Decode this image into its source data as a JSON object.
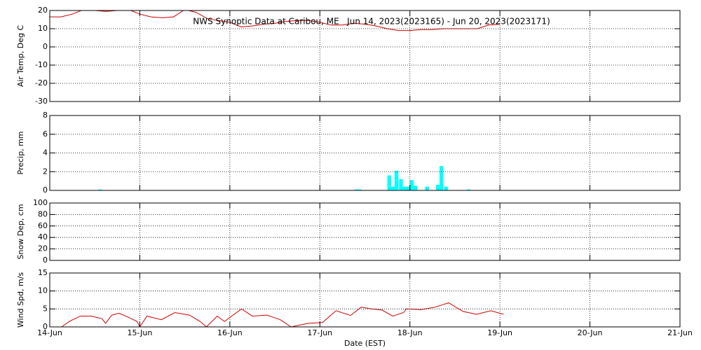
{
  "chart_data": [
    {
      "type": "line",
      "title": "NWS Synoptic Data at Caribou, ME   Jun 14, 2023(2023165) - Jun 20, 2023(2023171)",
      "y_label": "Air Temp, Deg C",
      "color": "#cc0000",
      "grid": true,
      "xlim": [
        0,
        7
      ],
      "xticks": [
        0,
        1,
        2,
        3,
        4,
        5,
        6,
        7
      ],
      "ylim": [
        -30,
        20
      ],
      "yticks": [
        -30,
        -20,
        -10,
        0,
        10,
        20
      ],
      "x": [
        0,
        0.125,
        0.25,
        0.375,
        0.5,
        0.625,
        0.75,
        0.875,
        1.0,
        1.125,
        1.25,
        1.375,
        1.5,
        1.625,
        1.75,
        1.875,
        2.0,
        2.125,
        2.25,
        2.375,
        2.5,
        2.625,
        2.75,
        2.875,
        3.0,
        3.125,
        3.25,
        3.375,
        3.5,
        3.625,
        3.75,
        3.875,
        4.0,
        4.125,
        4.25,
        4.375,
        4.5,
        4.625,
        4.75,
        4.875,
        5.0
      ],
      "values": [
        16.5,
        16.5,
        18,
        20.5,
        20,
        19.5,
        20,
        20.5,
        18,
        16.5,
        16,
        16.5,
        20.5,
        19,
        15.5,
        14.5,
        13.5,
        11,
        11.5,
        12.5,
        13,
        14,
        14.5,
        14.5,
        13.5,
        12,
        12,
        13,
        12.5,
        11.5,
        10,
        9,
        9,
        9.5,
        9.5,
        10,
        10,
        10,
        10,
        12,
        12.5
      ]
    },
    {
      "type": "bar",
      "y_label": "Precip, mm",
      "color": "#00ffff",
      "grid": true,
      "xlim": [
        0,
        7
      ],
      "xticks": [
        0,
        1,
        2,
        3,
        4,
        5,
        6,
        7
      ],
      "ylim": [
        0,
        8
      ],
      "yticks": [
        0,
        2,
        4,
        6,
        8
      ],
      "x": [
        0.54,
        3.38,
        3.42,
        3.75,
        3.79,
        3.83,
        3.88,
        3.92,
        3.96,
        4.0,
        4.04,
        4.17,
        4.29,
        4.33,
        4.38,
        4.63
      ],
      "values": [
        0.1,
        0.1,
        0.1,
        1.6,
        0.4,
        2.1,
        1.2,
        0.4,
        0.4,
        1.1,
        0.5,
        0.4,
        0.6,
        2.6,
        0.4,
        0.1
      ]
    },
    {
      "type": "line",
      "y_label": "Snow Dep, cm",
      "grid": true,
      "xlim": [
        0,
        7
      ],
      "xticks": [
        0,
        1,
        2,
        3,
        4,
        5,
        6,
        7
      ],
      "ylim": [
        0,
        100
      ],
      "yticks": [
        0,
        20,
        40,
        60,
        80,
        100
      ]
    },
    {
      "type": "line",
      "y_label": "Wind Spd, m/s",
      "x_label": "Date (EST)",
      "color": "#cc0000",
      "grid": true,
      "xlim": [
        0,
        7
      ],
      "xticks": [
        {
          "value": 0,
          "label": "14-Jun"
        },
        {
          "value": 1,
          "label": "15-Jun"
        },
        {
          "value": 2,
          "label": "16-Jun"
        },
        {
          "value": 3,
          "label": "17-Jun"
        },
        {
          "value": 4,
          "label": "18-Jun"
        },
        {
          "value": 5,
          "label": "19-Jun"
        },
        {
          "value": 6,
          "label": "20-Jun"
        },
        {
          "value": 7,
          "label": "21-Jun"
        }
      ],
      "ylim": [
        0,
        15
      ],
      "yticks": [
        0,
        5,
        10,
        15
      ],
      "x": [
        0.13,
        0.23,
        0.34,
        0.46,
        0.58,
        0.62,
        0.69,
        0.77,
        0.89,
        0.97,
        1.0,
        1.08,
        1.24,
        1.39,
        1.55,
        1.67,
        1.74,
        1.86,
        1.94,
        2.02,
        2.13,
        2.25,
        2.41,
        2.56,
        2.68,
        2.87,
        3.03,
        3.18,
        3.34,
        3.46,
        3.57,
        3.69,
        3.81,
        3.93,
        3.96,
        4.12,
        4.28,
        4.43,
        4.59,
        4.74,
        4.9,
        5.04
      ],
      "values": [
        0,
        1.7,
        3,
        3,
        2.3,
        1,
        3.3,
        3.8,
        2.5,
        1.5,
        0,
        3,
        2,
        4,
        3.3,
        1.5,
        0,
        3,
        1.5,
        3,
        5,
        3,
        3.3,
        2,
        0,
        1,
        1.2,
        4.5,
        3.2,
        5.5,
        5,
        4.7,
        3,
        4,
        5,
        4.8,
        5.5,
        6.7,
        4.3,
        3.5,
        4.5,
        3.5
      ]
    }
  ]
}
